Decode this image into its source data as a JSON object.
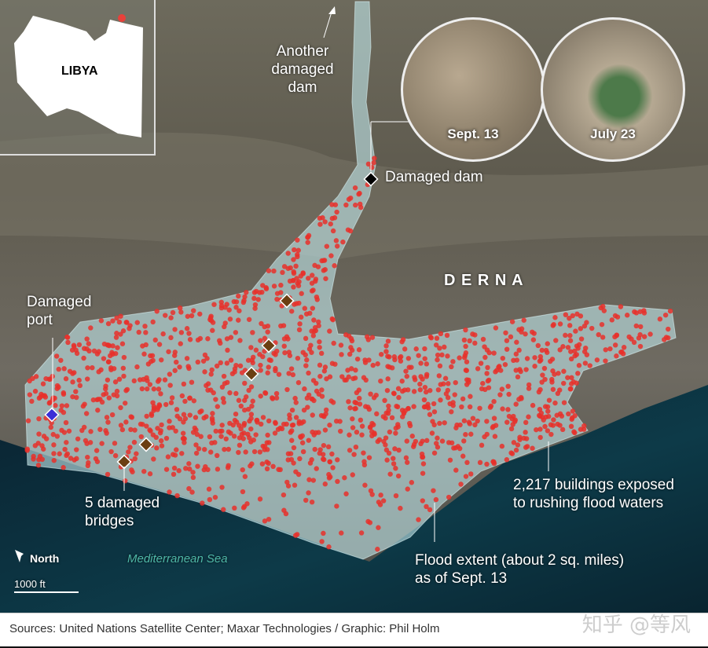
{
  "inset_map": {
    "country": "LIBYA",
    "marker_color": "#e8403a"
  },
  "city_label": "D E R N A",
  "sea_label": "Mediterranean Sea",
  "compass": {
    "icon": "north-arrow-icon",
    "label": "North"
  },
  "scale_bar": {
    "label": "1000 ft"
  },
  "annotations": {
    "another_dam": [
      "Another",
      "damaged",
      "dam"
    ],
    "damaged_dam": "Damaged dam",
    "damaged_port": [
      "Damaged",
      "port"
    ],
    "bridges": [
      "5 damaged",
      "bridges"
    ],
    "buildings": [
      "2,217 buildings exposed",
      "to rushing flood waters"
    ],
    "flood_extent": [
      "Flood extent (about 2 sq. miles)",
      "as of Sept. 13"
    ]
  },
  "comparison_images": [
    {
      "label": "Sept. 13"
    },
    {
      "label": "July 23"
    }
  ],
  "legend_colors": {
    "buildings": "#e8302a",
    "flood_extent": "#bfe3e6",
    "bridge": "#6b3f12",
    "dam": "#000000",
    "port": "#3a2fd6"
  },
  "footer": {
    "sources": "Sources: United Nations Satellite Center; Maxar Technologies / Graphic: Phil Holm",
    "watermark": "知乎 @等风"
  }
}
